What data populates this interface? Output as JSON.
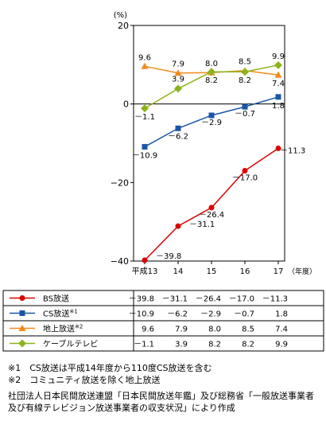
{
  "chart_data": {
    "type": "line",
    "y_unit": "(%)",
    "x_unit": "（年度）",
    "categories": [
      "平成13",
      "14",
      "15",
      "16",
      "17"
    ],
    "ylim": [
      -40,
      20
    ],
    "yticks": [
      20,
      0,
      -20,
      -40
    ],
    "grid": false,
    "legend_position": "table-below",
    "series": [
      {
        "name": "BS放送",
        "values": [
          -39.8,
          -31.1,
          -26.4,
          -17.0,
          -11.3
        ],
        "labels": [
          "－39.8",
          "－31.1",
          "－26.4",
          "－17.0",
          "－11.3"
        ],
        "color": "#d90000",
        "marker": "circle"
      },
      {
        "name": "CS放送",
        "sup": "※1",
        "values": [
          -10.9,
          -6.2,
          -2.9,
          -0.7,
          1.8
        ],
        "labels": [
          "－10.9",
          "－6.2",
          "－2.9",
          "－0.7",
          "1.8"
        ],
        "color": "#1a56a8",
        "marker": "square"
      },
      {
        "name": "地上放送",
        "sup": "※2",
        "values": [
          9.6,
          7.9,
          8.0,
          8.5,
          7.4
        ],
        "labels": [
          "9.6",
          "7.9",
          "8.0",
          "8.5",
          "7.4"
        ],
        "color": "#f08a1c",
        "marker": "triangle"
      },
      {
        "name": "ケーブルテレビ",
        "values": [
          -1.1,
          3.9,
          8.2,
          8.2,
          9.9
        ],
        "labels": [
          "－1.1",
          "3.9",
          "8.2",
          "8.2",
          "9.9"
        ],
        "color": "#8cb31d",
        "marker": "diamond"
      }
    ]
  },
  "notes": [
    "※1　CS放送は平成14年度から110度CS放送を含む",
    "※2　コミュニティ放送を除く地上放送"
  ],
  "source": "社団法人日本民間放送連盟「日本民間放送年鑑」及び総務省「一般放送事業者及び有線テレビジョン放送事業者の収支状況」により作成"
}
